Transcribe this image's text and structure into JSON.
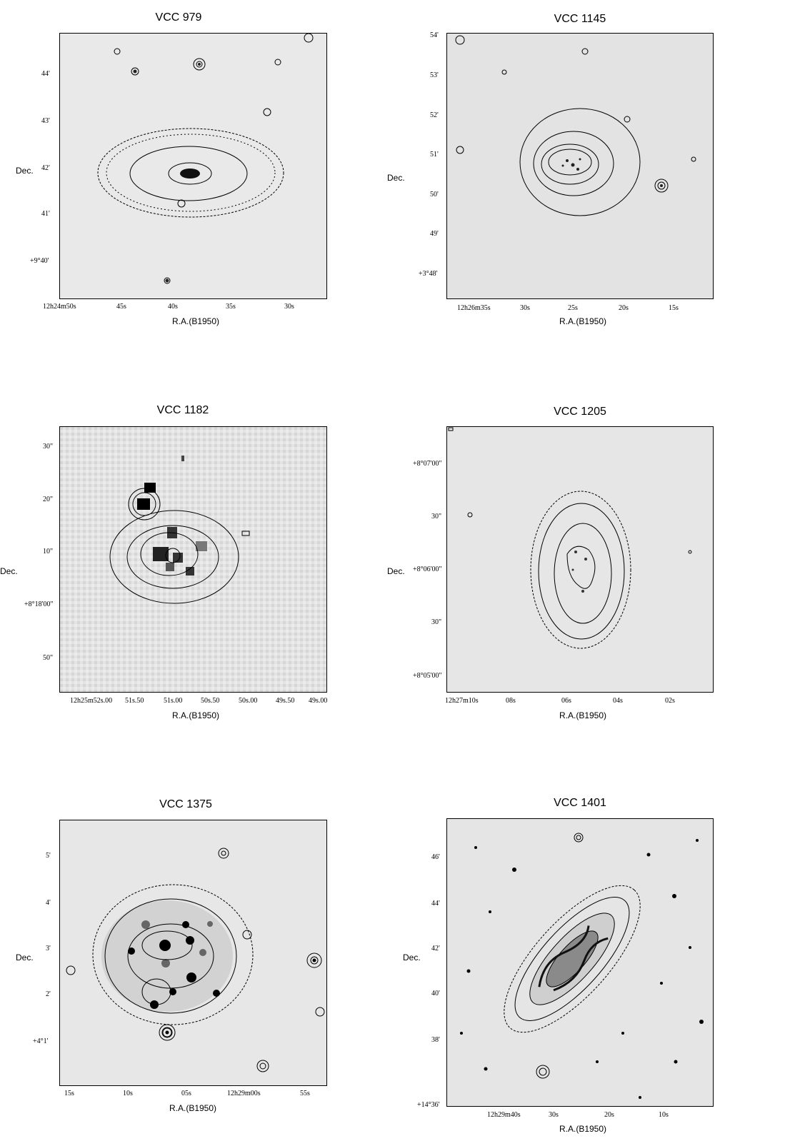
{
  "panels": [
    {
      "title": "VCC 979",
      "ylabel": "Dec.",
      "xlabel": "R.A.(B1950)",
      "yticks": [
        "44'",
        "43'",
        "42'",
        "41'",
        "+9°40'"
      ],
      "xticks": [
        "12h24m50s",
        "45s",
        "40s",
        "35s",
        "30s"
      ]
    },
    {
      "title": "VCC 1145",
      "ylabel": "Dec.",
      "xlabel": "R.A.(B1950)",
      "yticks": [
        "54'",
        "53'",
        "52'",
        "51'",
        "50'",
        "49'",
        "+3°48'"
      ],
      "xticks": [
        "12h26m35s",
        "30s",
        "25s",
        "20s",
        "15s"
      ]
    },
    {
      "title": "VCC 1182",
      "ylabel": "Dec.",
      "xlabel": "R.A.(B1950)",
      "yticks": [
        "30\"",
        "20\"",
        "10\"",
        "+8°18'00\"",
        "50\""
      ],
      "xticks": [
        "12h25m52s.00",
        "51s.50",
        "51s.00",
        "50s.50",
        "50s.00",
        "49s.50",
        "49s.00"
      ]
    },
    {
      "title": "VCC 1205",
      "ylabel": "Dec.",
      "xlabel": "R.A.(B1950)",
      "yticks": [
        "+8°07'00\"",
        "30\"",
        "+8°06'00\"",
        "30\"",
        "+8°05'00\""
      ],
      "xticks": [
        "12h27m10s",
        "08s",
        "06s",
        "04s",
        "02s"
      ]
    },
    {
      "title": "VCC 1375",
      "ylabel": "Dec.",
      "xlabel": "R.A.(B1950)",
      "yticks": [
        "5'",
        "4'",
        "3'",
        "2'",
        "+4°1'"
      ],
      "xticks": [
        "15s",
        "10s",
        "05s",
        "12h29m00s",
        "55s"
      ]
    },
    {
      "title": "VCC 1401",
      "ylabel": "Dec.",
      "xlabel": "R.A.(B1950)",
      "yticks": [
        "46'",
        "44'",
        "42'",
        "40'",
        "38'",
        "+14°36'"
      ],
      "xticks": [
        "12h29m40s",
        "30s",
        "20s",
        "10s"
      ]
    }
  ]
}
